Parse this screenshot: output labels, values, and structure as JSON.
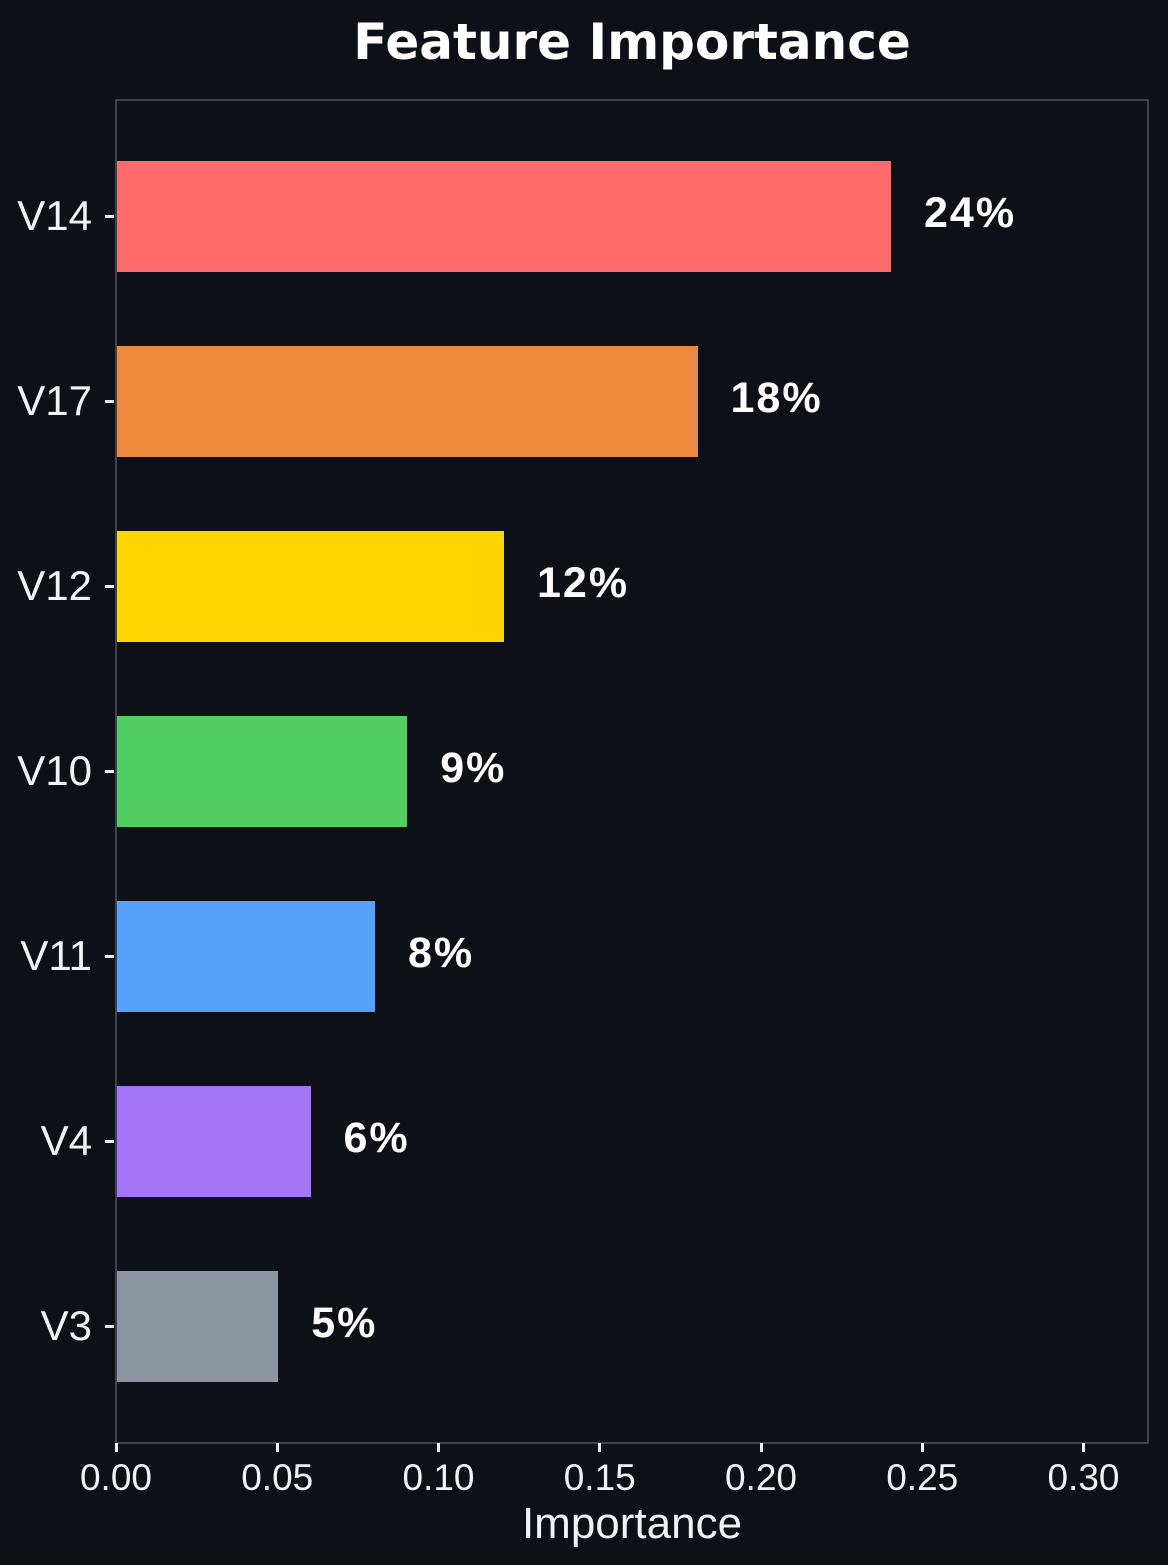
{
  "chart_data": {
    "type": "bar",
    "orientation": "horizontal",
    "title": "Feature Importance",
    "xlabel": "Importance",
    "ylabel": "",
    "categories": [
      "V14",
      "V17",
      "V12",
      "V10",
      "V11",
      "V4",
      "V3"
    ],
    "values": [
      0.24,
      0.18,
      0.12,
      0.09,
      0.08,
      0.06,
      0.05
    ],
    "bar_labels": [
      "24%",
      "18%",
      "12%",
      "9%",
      "8%",
      "6%",
      "5%"
    ],
    "bar_colors": [
      "#ff6b6b",
      "#ee8a3e",
      "#ffd400",
      "#53ce63",
      "#56a2fb",
      "#a375f5",
      "#8d95a2"
    ],
    "xlim": [
      0,
      0.32
    ],
    "x_ticks": [
      0.0,
      0.05,
      0.1,
      0.15,
      0.2,
      0.25,
      0.3
    ],
    "x_tick_labels": [
      "0.00",
      "0.05",
      "0.10",
      "0.15",
      "0.20",
      "0.25",
      "0.30"
    ],
    "grid": false,
    "legend": null,
    "colors": {
      "background": "#0d1117",
      "spine": "#3e444d",
      "tick_mark": "#eceef1",
      "tick_text": "#f0f2f5",
      "title_text": "#ffffff",
      "value_label_text": "#ffffff"
    }
  }
}
